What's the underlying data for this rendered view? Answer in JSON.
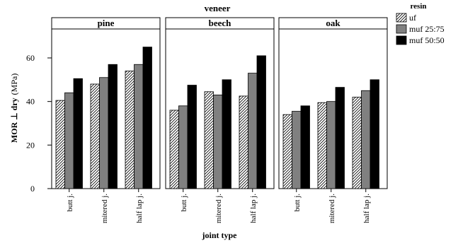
{
  "chart_data": {
    "type": "bar",
    "title": "veneer",
    "xlabel": "joint type",
    "ylabel_main": "MOR ⊥ dry",
    "ylabel_unit": "(MPa)",
    "ylim": [
      0,
      75
    ],
    "yticks": [
      0,
      20,
      40,
      60
    ],
    "grid": false,
    "legend_placement": "top-right, outside panels",
    "legend_title": "resin",
    "categories": [
      "butt j.",
      "mitered j.",
      "half lap j."
    ],
    "series_names": [
      "uf",
      "muf 25:75",
      "muf 50:50"
    ],
    "series_styles": [
      {
        "fill": "hatch",
        "color": "#ffffff"
      },
      {
        "fill": "solid",
        "color": "#808080"
      },
      {
        "fill": "solid",
        "color": "#000000"
      }
    ],
    "panels": [
      {
        "name": "pine",
        "series": [
          {
            "name": "uf",
            "values": [
              40.5,
              48.0,
              54.0
            ]
          },
          {
            "name": "muf 25:75",
            "values": [
              44.0,
              51.0,
              57.0
            ]
          },
          {
            "name": "muf 50:50",
            "values": [
              50.5,
              57.0,
              65.0
            ]
          }
        ]
      },
      {
        "name": "beech",
        "series": [
          {
            "name": "uf",
            "values": [
              36.0,
              44.5,
              42.5
            ]
          },
          {
            "name": "muf 25:75",
            "values": [
              38.0,
              43.0,
              53.0
            ]
          },
          {
            "name": "muf 50:50",
            "values": [
              47.5,
              50.0,
              61.0
            ]
          }
        ]
      },
      {
        "name": "oak",
        "series": [
          {
            "name": "uf",
            "values": [
              34.0,
              39.5,
              42.0
            ]
          },
          {
            "name": "muf 25:75",
            "values": [
              35.5,
              40.0,
              45.0
            ]
          },
          {
            "name": "muf 50:50",
            "values": [
              38.0,
              46.5,
              50.0
            ]
          }
        ]
      }
    ]
  }
}
